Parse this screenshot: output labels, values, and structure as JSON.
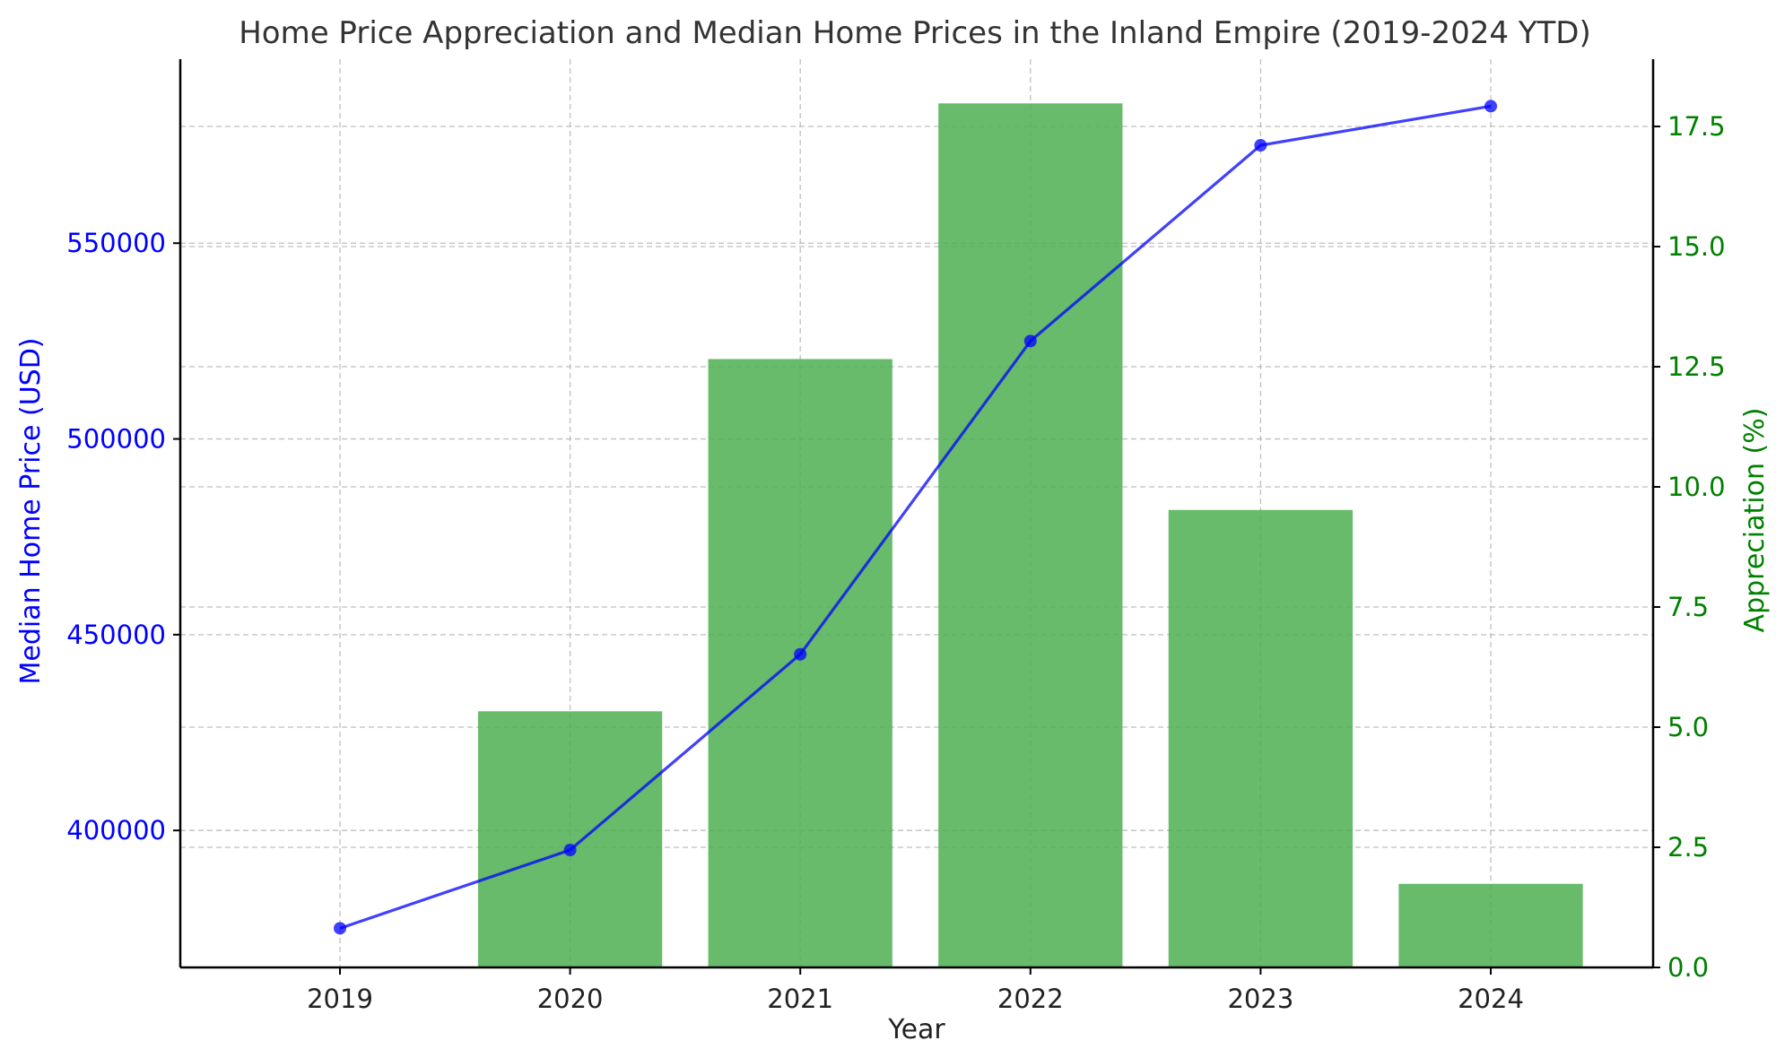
{
  "title": "Home Price Appreciation and Median Home Prices in the Inland Empire (2019-2024 YTD)",
  "colors": {
    "price_line": "#0000ff",
    "appreciation_bar": "#4caf50",
    "left_axis": "#0000ff",
    "right_axis": "#008000",
    "x_axis": "#222222"
  },
  "chart_data": {
    "type": "bar",
    "title": "Home Price Appreciation and Median Home Prices in the Inland Empire (2019-2024 YTD)",
    "xlabel": "Year",
    "ylabel": "Median Home Price (USD)",
    "y2label": "Appreciation (%)",
    "categories": [
      "2019",
      "2020",
      "2021",
      "2022",
      "2023",
      "2024"
    ],
    "ylim": [
      365000,
      597000
    ],
    "y2lim": [
      0,
      18.9
    ],
    "yticks": [
      400000,
      450000,
      500000,
      550000
    ],
    "y2ticks": [
      0.0,
      2.5,
      5.0,
      7.5,
      10.0,
      12.5,
      15.0,
      17.5
    ],
    "grid": true,
    "series": [
      {
        "name": "Median Home Price (USD)",
        "type": "line",
        "axis": "left",
        "values": [
          375000,
          395000,
          445000,
          525000,
          575000,
          585000
        ]
      },
      {
        "name": "Appreciation (%)",
        "type": "bar",
        "axis": "right",
        "values": [
          null,
          5.33,
          12.66,
          17.98,
          9.52,
          1.74
        ]
      }
    ]
  }
}
